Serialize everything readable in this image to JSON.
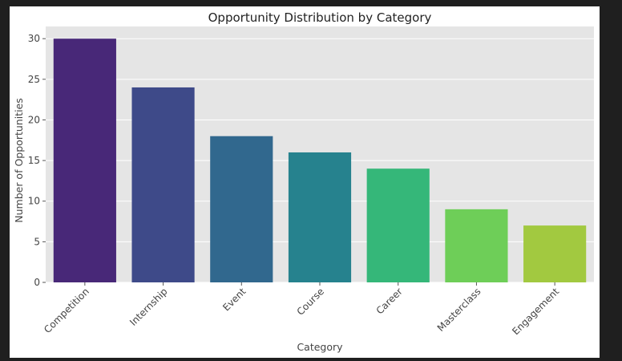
{
  "chart_data": {
    "type": "bar",
    "title": "Opportunity Distribution by Category",
    "xlabel": "Category",
    "ylabel": "Number of Opportunities",
    "categories": [
      "Competition",
      "Internship",
      "Event",
      "Course",
      "Career",
      "Masterclass",
      "Engagement"
    ],
    "values": [
      30,
      24,
      18,
      16,
      14,
      9,
      7
    ],
    "colors": [
      "#482878",
      "#3e4a89",
      "#31688e",
      "#26828e",
      "#35b779",
      "#6ece58",
      "#a2c940"
    ],
    "ylim": [
      0,
      31.5
    ],
    "yticks": [
      0,
      5,
      10,
      15,
      20,
      25,
      30
    ],
    "grid": true,
    "background": "#e5e5e5",
    "x_tick_rotation": 45
  }
}
